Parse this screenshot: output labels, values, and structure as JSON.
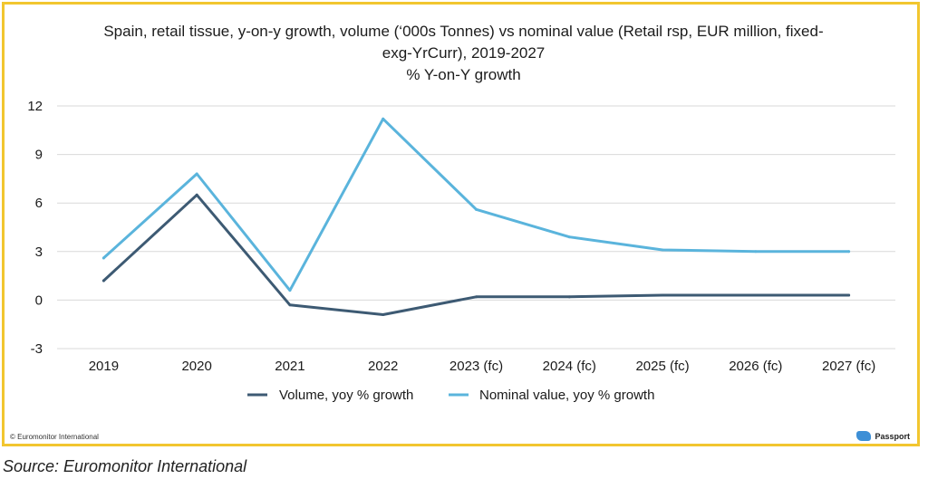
{
  "title": {
    "line1": "Spain, retail tissue, y-on-y growth, volume (‘000s Tonnes) vs nominal value (Retail rsp, EUR million, fixed-",
    "line2": "exg-YrCurr), 2019-2027",
    "line3": "% Y-on-Y growth"
  },
  "footer": {
    "copyright": "© Euromonitor International",
    "brand": "Passport"
  },
  "source": "Source: Euromonitor International",
  "colors": {
    "border": "#f2c62f",
    "volume": "#3d5a73",
    "value": "#5ab4dc",
    "grid": "#d9d9d9"
  },
  "chart_data": {
    "type": "line",
    "categories": [
      "2019",
      "2020",
      "2021",
      "2022",
      "2023 (fc)",
      "2024 (fc)",
      "2025 (fc)",
      "2026 (fc)",
      "2027 (fc)"
    ],
    "ylim": [
      -3,
      12
    ],
    "yticks": [
      -3,
      0,
      3,
      6,
      9,
      12
    ],
    "grid": true,
    "legend_position": "bottom",
    "series": [
      {
        "name": "Volume, yoy % growth",
        "color": "#3d5a73",
        "values": [
          1.2,
          6.5,
          -0.3,
          -0.9,
          0.2,
          0.2,
          0.3,
          0.3,
          0.3
        ]
      },
      {
        "name": "Nominal value, yoy % growth",
        "color": "#5ab4dc",
        "values": [
          2.6,
          7.8,
          0.6,
          11.2,
          5.6,
          3.9,
          3.1,
          3.0,
          3.0
        ]
      }
    ]
  }
}
